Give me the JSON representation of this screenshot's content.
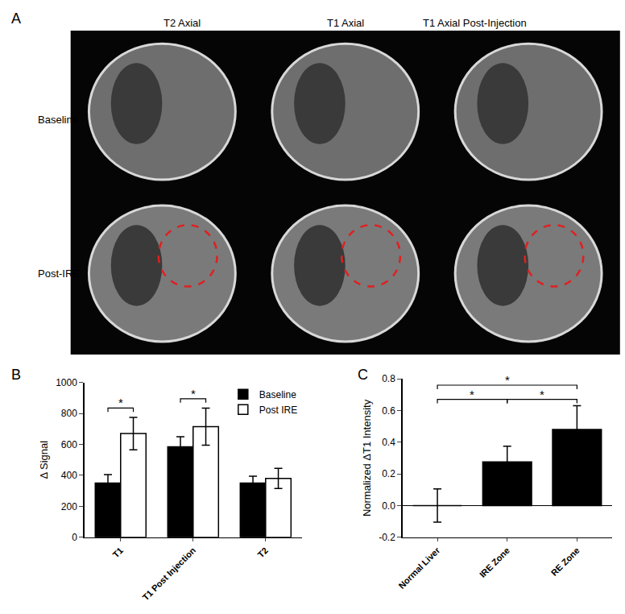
{
  "figure": {
    "panel_labels": [
      "A",
      "B",
      "C"
    ],
    "image_grid": {
      "columns": [
        "T2 Axial",
        "T1 Axial",
        "T1 Axial Post-Injection"
      ],
      "rows": [
        "Baseline",
        "Post-IRE"
      ]
    }
  },
  "chart_data": [
    {
      "type": "bar",
      "ylabel": "Δ Signal",
      "categories": [
        "T1",
        "T1 Post Injection",
        "T2"
      ],
      "series": [
        {
          "name": "Baseline",
          "color": "#000000",
          "values": [
            350,
            585,
            350
          ],
          "errors": [
            55,
            65,
            45
          ]
        },
        {
          "name": "Post IRE",
          "color": "#ffffff",
          "values": [
            670,
            715,
            380
          ],
          "errors": [
            105,
            120,
            65
          ]
        }
      ],
      "ylim": [
        0,
        1000
      ],
      "yticks": [
        0,
        200,
        400,
        600,
        800,
        1000
      ],
      "legend": "upper right",
      "annotations": [
        {
          "text": "*",
          "category": "T1"
        },
        {
          "text": "*",
          "category": "T1 Post Injection"
        }
      ]
    },
    {
      "type": "bar",
      "ylabel": "Normalized ΔT1 Intensity",
      "categories": [
        "Normal Liver",
        "IRE Zone",
        "RE Zone"
      ],
      "values": [
        0.0,
        0.275,
        0.48
      ],
      "errors": [
        0.105,
        0.1,
        0.15
      ],
      "color": "#000000",
      "ylim": [
        -0.2,
        0.8
      ],
      "yticks": [
        -0.2,
        {
          "value": 0,
          "label": "0.0"
        },
        0.2,
        0.4,
        0.6,
        0.8
      ],
      "annotations": [
        {
          "text": "*",
          "from": "Normal Liver",
          "to": "IRE Zone"
        },
        {
          "text": "*",
          "from": "IRE Zone",
          "to": "RE Zone"
        },
        {
          "text": "*",
          "from": "Normal Liver",
          "to": "RE Zone"
        }
      ]
    }
  ]
}
